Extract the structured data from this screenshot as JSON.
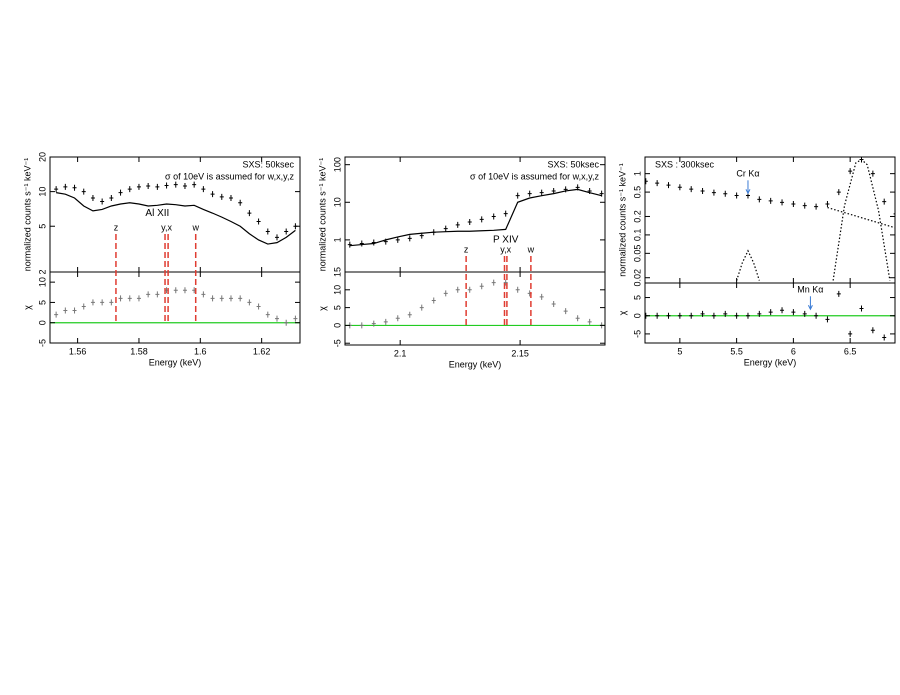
{
  "chart_data": [
    {
      "type": "spectrum",
      "xlim": [
        1.551,
        1.6325
      ],
      "xticks": [
        1.56,
        1.58,
        1.6,
        1.62
      ],
      "xlabel": "Energy (keV)",
      "notes": [
        "SXS: 50ksec",
        "σ of 10eV is assumed for w,x,y,z"
      ],
      "notes_corner": "upper right",
      "x": [
        1.553,
        1.556,
        1.559,
        1.562,
        1.565,
        1.568,
        1.571,
        1.574,
        1.577,
        1.58,
        1.583,
        1.586,
        1.589,
        1.592,
        1.595,
        1.598,
        1.601,
        1.604,
        1.607,
        1.61,
        1.613,
        1.616,
        1.619,
        1.622,
        1.625,
        1.628,
        1.631
      ],
      "top": {
        "ylabel": "normalized counts s⁻¹ keV⁻¹",
        "log": true,
        "ylim": [
          2,
          20
        ],
        "yticks": [
          2,
          5,
          10,
          20
        ],
        "series": [
          {
            "style": "points",
            "color": "#000000",
            "values": [
              10.5,
              11,
              10.8,
              10,
              8.8,
              8.2,
              8.8,
              9.8,
              10.5,
              11,
              11.2,
              11,
              11.3,
              11.5,
              11.2,
              11.5,
              10.5,
              9.5,
              9,
              8.8,
              8,
              6.5,
              5.5,
              4.5,
              4,
              4.5,
              5
            ]
          },
          {
            "style": "line",
            "color": "#000000",
            "values": [
              9.8,
              9.5,
              8.8,
              7.5,
              6.8,
              7,
              7.5,
              7.8,
              8,
              7.8,
              7.5,
              7.6,
              7.8,
              7.7,
              7.5,
              7.6,
              7,
              6.5,
              6,
              5.5,
              5,
              4.3,
              3.8,
              3.5,
              3.6,
              4,
              4.6
            ]
          }
        ]
      },
      "bottom": {
        "ylabel": "χ",
        "ylim": [
          -5,
          12.5
        ],
        "yticks": [
          -5,
          0,
          5,
          10
        ],
        "reference_line": {
          "value": 0,
          "color": "#22cc22"
        },
        "series": [
          {
            "style": "points",
            "color": "#777777",
            "values": [
              2,
              3,
              3,
              4,
              5,
              5,
              5,
              6,
              6,
              6,
              7,
              7,
              8,
              8,
              8,
              8,
              7,
              6,
              6,
              6,
              6,
              5,
              4,
              2,
              1,
              0,
              1
            ]
          }
        ]
      },
      "marker_line_color": "#e03c31",
      "marker_lines": [
        {
          "label": "z",
          "energies": [
            1.5725
          ]
        },
        {
          "label": "y,x",
          "energies": [
            1.5885,
            1.5895
          ]
        },
        {
          "label": "w",
          "energies": [
            1.5985
          ]
        }
      ],
      "annotations": [
        {
          "text": "Al XII",
          "panel": "top",
          "x": 1.586,
          "y": 6.5,
          "arrow": false
        }
      ]
    },
    {
      "type": "spectrum",
      "xlim": [
        2.077,
        2.1854
      ],
      "xticks": [
        2.1,
        2.15
      ],
      "xlabel": "Energy (keV)",
      "notes": [
        "SXS: 50ksec",
        "σ of 10eV is assumed for w,x,y,z"
      ],
      "notes_corner": "upper right",
      "x": [
        2.079,
        2.084,
        2.089,
        2.094,
        2.099,
        2.104,
        2.109,
        2.114,
        2.119,
        2.124,
        2.129,
        2.134,
        2.139,
        2.144,
        2.149,
        2.154,
        2.159,
        2.164,
        2.169,
        2.174,
        2.179,
        2.184
      ],
      "top": {
        "ylabel": "normalized counts s⁻¹ keV⁻¹",
        "log": true,
        "ylim": [
          0.14,
          160
        ],
        "yticks": [
          1,
          10,
          100
        ],
        "series": [
          {
            "style": "points",
            "color": "#000000",
            "values": [
              0.75,
              0.8,
              0.85,
              0.9,
              1.0,
              1.1,
              1.3,
              1.6,
              2.0,
              2.5,
              3.0,
              3.5,
              4.2,
              5,
              15,
              17,
              18,
              20,
              22,
              25,
              20,
              17
            ]
          },
          {
            "style": "line",
            "color": "#000000",
            "values": [
              0.7,
              0.75,
              0.8,
              1.0,
              1.2,
              1.4,
              1.5,
              1.6,
              1.65,
              1.7,
              1.7,
              1.75,
              1.8,
              1.9,
              10,
              13,
              15,
              17,
              20,
              22,
              18,
              15
            ]
          }
        ]
      },
      "bottom": {
        "ylabel": "χ",
        "ylim": [
          -5.5,
          15
        ],
        "yticks": [
          -5,
          0,
          5,
          10,
          15
        ],
        "reference_line": {
          "value": 0,
          "color": "#22cc22"
        },
        "series": [
          {
            "style": "points",
            "color": "#777777",
            "values": [
              0,
              0,
              0.5,
              1,
              2,
              3,
              5,
              7,
              9,
              10,
              10,
              11,
              12,
              12,
              10,
              9,
              8,
              6,
              4,
              2,
              1,
              0
            ]
          }
        ]
      },
      "marker_line_color": "#e03c31",
      "marker_lines": [
        {
          "label": "z",
          "energies": [
            2.1275
          ]
        },
        {
          "label": "y,x",
          "energies": [
            2.1435,
            2.1445
          ]
        },
        {
          "label": "w",
          "energies": [
            2.1545
          ]
        }
      ],
      "annotations": [
        {
          "text": "P XIV",
          "panel": "top",
          "x": 2.144,
          "y": 1.0,
          "arrow": false
        }
      ]
    },
    {
      "type": "spectrum",
      "xlim": [
        4.693,
        6.895
      ],
      "xticks": [
        5,
        5.5,
        6,
        6.5
      ],
      "xlabel": "Energy (keV)",
      "notes": [
        "SXS : 300ksec"
      ],
      "notes_corner": "upper left",
      "x": [
        4.7,
        4.8,
        4.9,
        5.0,
        5.1,
        5.2,
        5.3,
        5.4,
        5.5,
        5.6,
        5.7,
        5.8,
        5.9,
        6.0,
        6.1,
        6.2,
        6.3,
        6.4,
        6.5,
        6.6,
        6.7,
        6.8,
        6.9
      ],
      "top": {
        "ylabel": "normalized counts s⁻¹ keV⁻¹",
        "log": true,
        "ylim": [
          0.0164,
          1.87
        ],
        "yticks": [
          0.02,
          0.05,
          0.1,
          0.2,
          0.5,
          1
        ],
        "series": [
          {
            "style": "points",
            "color": "#000000",
            "values": [
              0.75,
              0.7,
              0.65,
              0.6,
              0.56,
              0.52,
              0.49,
              0.47,
              0.44,
              0.44,
              0.38,
              0.36,
              0.34,
              0.32,
              0.3,
              0.29,
              0.32,
              0.5,
              1.1,
              1.7,
              1.0,
              0.35,
              0.22
            ]
          },
          {
            "style": "dotted",
            "color": "#000000",
            "x": [
              5.5,
              5.55,
              5.6,
              5.65,
              5.7
            ],
            "values": [
              0.018,
              0.035,
              0.055,
              0.035,
              0.018
            ]
          },
          {
            "style": "dotted",
            "color": "#000000",
            "x": [
              6.35,
              6.45,
              6.55,
              6.6,
              6.65,
              6.75,
              6.85
            ],
            "values": [
              0.018,
              0.3,
              1.5,
              1.7,
              1.4,
              0.25,
              0.018
            ]
          },
          {
            "style": "dotted",
            "color": "#000000",
            "x": [
              6.3,
              6.9
            ],
            "values": [
              0.28,
              0.13
            ]
          }
        ]
      },
      "bottom": {
        "ylabel": "χ",
        "ylim": [
          -7.5,
          9
        ],
        "yticks": [
          -5,
          0,
          5
        ],
        "reference_line": {
          "value": 0,
          "color": "#22cc22"
        },
        "series": [
          {
            "style": "points",
            "color": "#000000",
            "values": [
              0,
              0,
              0,
              0,
              0,
              0.5,
              0,
              0.5,
              0,
              0,
              0.5,
              1,
              1.5,
              1,
              0.5,
              0,
              -1,
              6,
              -5,
              2,
              -4,
              -6,
              0
            ]
          }
        ]
      },
      "marker_line_color": "#e03c31",
      "marker_lines": [],
      "annotations": [
        {
          "text": "Cr Kα",
          "panel": "top",
          "x": 5.6,
          "y": 0.46,
          "arrow": true,
          "color": "#3a7bd5"
        },
        {
          "text": "Mn Kα",
          "panel": "bottom",
          "x": 6.15,
          "y": 1.5,
          "arrow": true,
          "color": "#3a7bd5"
        }
      ]
    }
  ]
}
